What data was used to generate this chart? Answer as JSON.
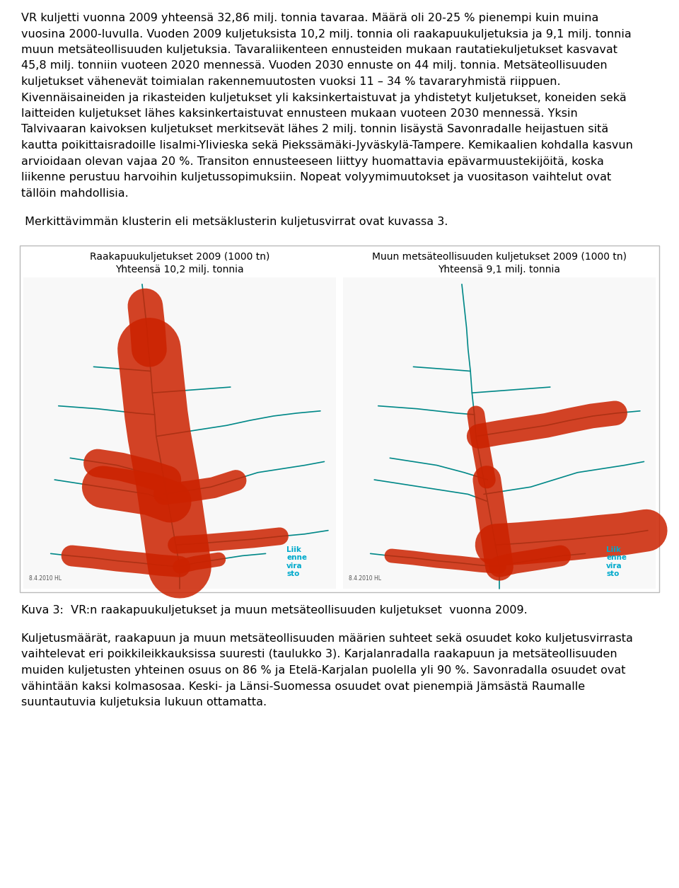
{
  "background_color": "#ffffff",
  "text_color": "#000000",
  "font_size_body": 11.5,
  "font_size_caption": 11.5,
  "font_size_map_title": 10.0,
  "paragraph1_lines": [
    "VR kuljetti vuonna 2009 yhteensä 32,86 milj. tonnia tavaraa. Määrä oli 20-25 % pienempi kuin muina",
    "vuosina 2000-luvulla. Vuoden 2009 kuljetuksista 10,2 milj. tonnia oli raakapuukuljetuksia ja 9,1 milj. tonnia",
    "muun metsäteollisuuden kuljetuksia. Tavaraliikenteen ennusteiden mukaan rautatiekuljetukset kasvavat",
    "45,8 milj. tonniin vuoteen 2020 mennessä. Vuoden 2030 ennuste on 44 milj. tonnia. Metsäteollisuuden",
    "kuljetukset vähenevät toimialan rakennemuutosten vuoksi 11 – 34 % tavararyhmistä riippuen.",
    "Kivennäisaineiden ja rikasteiden kuljetukset yli kaksinkertaistuvat ja yhdistetyt kuljetukset, koneiden sekä",
    "laitteiden kuljetukset lähes kaksinkertaistuvat ennusteen mukaan vuoteen 2030 mennessä. Yksin",
    "Talvivaaran kaivoksen kuljetukset merkitsevät lähes 2 milj. tonnin lisäystä Savonradalle heijastuen sitä",
    "kautta poikittaisradoille Iisalmi-Ylivieska sekä Piekssämäki-Jyväskylä-Tampere. Kemikaalien kohdalla kasvun",
    "arvioidaan olevan vajaa 20 %. Transiton ennusteeseen liittyy huomattavia epävarmuustekijöitä, koska",
    "liikenne perustuu harvoihin kuljetussopimuksiin. Nopeat volyymimuutokset ja vuositason vaihtelut ovat",
    "tällöin mahdollisia."
  ],
  "paragraph2": " Merkittävimmän klusterin eli metsäklusterin kuljetusvirrat ovat kuvassa 3.",
  "map_left_title1": "Raakapuukuljetukset 2009 (1000 tn)",
  "map_left_title2": "Yhteensä 10,2 milj. tonnia",
  "map_right_title1": "Muun metsäteollisuuden kuljetukset 2009 (1000 tn)",
  "map_right_title2": "Yhteensä 9,1 milj. tonnia",
  "caption": "Kuva 3:  VR:n raakapuukuljetukset ja muun metsäteollisuuden kuljetukset  vuonna 2009.",
  "paragraph3_lines": [
    "Kuljetusmäärät, raakapuun ja muun metsäteollisuuden määrien suhteet sekä osuudet koko kuljetusvirrasta",
    "vaihtelevat eri poikkileikkauksissa suuresti (taulukko 3). Karjalanradalla raakapuun ja metsäteollisuuden",
    "muiden kuljetusten yhteinen osuus on 86 % ja Etelä-Karjalan puolella yli 90 %. Savonradalla osuudet ovat",
    "vähintään kaksi kolmasosaa. Keski- ja Länsi-Suomessa osuudet ovat pienempiä Jämsästä Raumalle",
    "suuntautuvia kuljetuksia lukuun ottamatta."
  ],
  "map_bg_color": "#ffffff",
  "map_border_color": "#bbbbbb",
  "liikenne_color": "#00aacc",
  "red_color": "#cc2200",
  "teal_color": "#008888",
  "date_text": "8.4.2010 HL"
}
